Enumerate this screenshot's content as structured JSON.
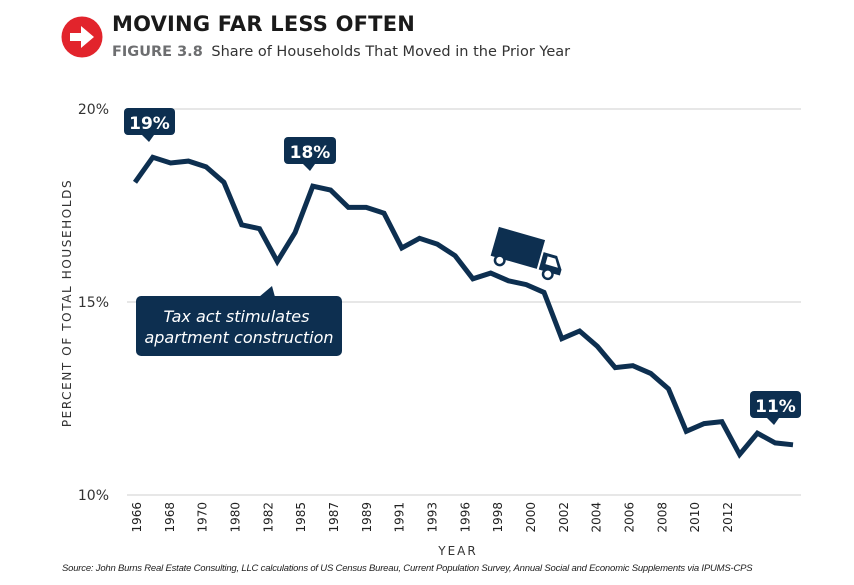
{
  "header": {
    "icon": "right-arrow-circle-icon",
    "icon_color": "#e2242c",
    "title": "MOVING FAR LESS OFTEN",
    "figure_label": "FIGURE 3.8",
    "subtitle": "Share of Households That Moved in the Prior Year"
  },
  "chart_data": {
    "type": "line",
    "title": "",
    "xlabel": "YEAR",
    "ylabel": "PERCENT OF TOTAL HOUSEHOLDS",
    "ylim": [
      10,
      20
    ],
    "yticks": [
      10,
      15,
      20
    ],
    "ytick_labels": [
      "10%",
      "15%",
      "20%"
    ],
    "xtick_labels": [
      "1966",
      "1968",
      "1970",
      "1980",
      "1982",
      "1985",
      "1987",
      "1989",
      "1991",
      "1993",
      "1996",
      "1998",
      "2000",
      "2002",
      "2004",
      "2006",
      "2008",
      "2010",
      "2012"
    ],
    "grid": true,
    "line_color": "#0d2f50",
    "series": [
      {
        "name": "",
        "values": [
          18.1,
          18.75,
          18.6,
          18.65,
          18.5,
          18.1,
          17.0,
          16.9,
          16.05,
          16.8,
          18.0,
          17.9,
          17.45,
          17.45,
          17.3,
          16.4,
          16.65,
          16.5,
          16.2,
          15.6,
          15.75,
          15.55,
          15.45,
          15.25,
          14.05,
          14.25,
          13.85,
          13.3,
          13.35,
          13.15,
          12.75,
          11.65,
          11.85,
          11.9,
          11.05,
          11.6,
          11.35,
          11.3
        ]
      }
    ],
    "annotations": [
      {
        "text": "19%"
      },
      {
        "text": "18%"
      },
      {
        "text": "11%"
      },
      {
        "text": "Tax act stimulates apartment construction"
      }
    ],
    "truck_icon": "moving-truck-icon"
  },
  "source": "Source: John Burns Real Estate Consulting, LLC calculations of US Census Bureau, Current Population Survey, Annual Social and Economic Supplements via IPUMS-CPS"
}
